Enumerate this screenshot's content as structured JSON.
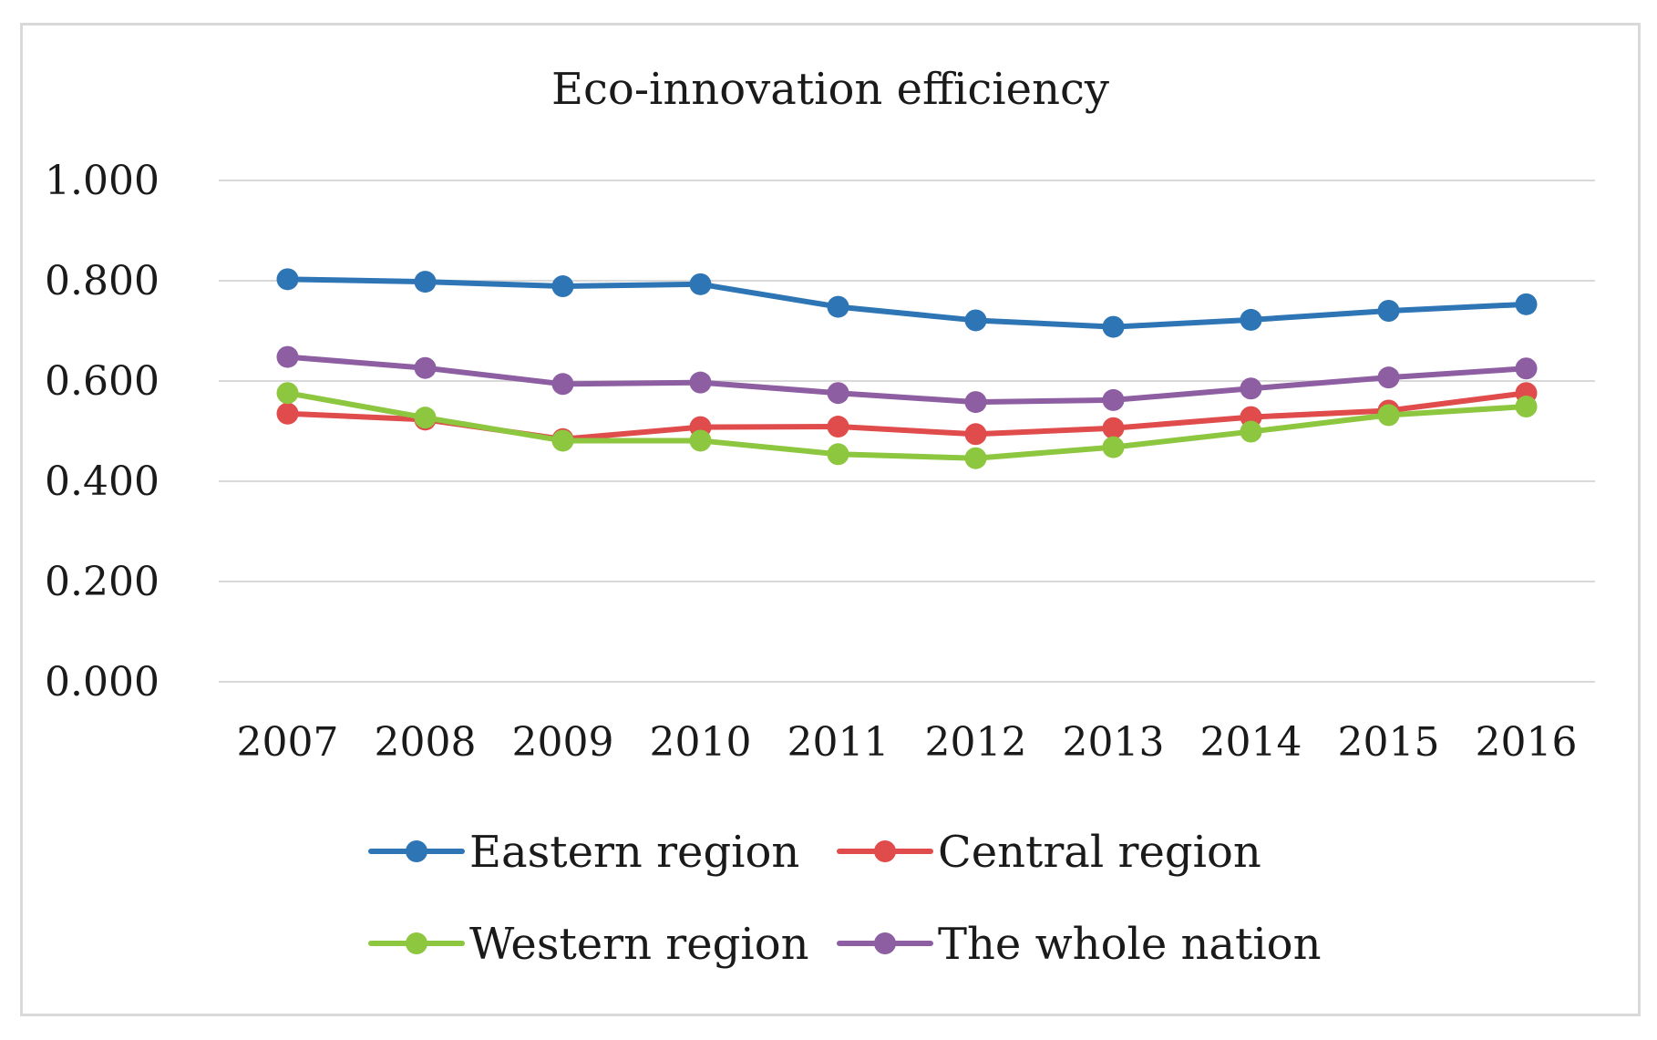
{
  "chart_data": {
    "type": "line",
    "title": "Eco-innovation efficiency",
    "xlabel": "",
    "ylabel": "",
    "categories": [
      "2007",
      "2008",
      "2009",
      "2010",
      "2011",
      "2012",
      "2013",
      "2014",
      "2015",
      "2016"
    ],
    "ylim": [
      0,
      1
    ],
    "yticks": [
      "0.000",
      "0.200",
      "0.400",
      "0.600",
      "0.800",
      "1.000"
    ],
    "ytick_values": [
      0,
      0.2,
      0.4,
      0.6,
      0.8,
      1.0
    ],
    "grid": true,
    "legend_position": "bottom",
    "series": [
      {
        "name": "Eastern region",
        "color": "#2e75b6",
        "values": [
          0.803,
          0.798,
          0.789,
          0.793,
          0.748,
          0.721,
          0.708,
          0.722,
          0.74,
          0.753
        ]
      },
      {
        "name": "Central region",
        "color": "#e04b4b",
        "values": [
          0.535,
          0.523,
          0.484,
          0.508,
          0.509,
          0.494,
          0.506,
          0.528,
          0.541,
          0.576
        ]
      },
      {
        "name": "Western region",
        "color": "#8dc63f",
        "values": [
          0.576,
          0.527,
          0.481,
          0.481,
          0.454,
          0.446,
          0.468,
          0.499,
          0.532,
          0.549
        ]
      },
      {
        "name": "The whole nation",
        "color": "#8e5ea2",
        "values": [
          0.648,
          0.626,
          0.594,
          0.597,
          0.576,
          0.558,
          0.562,
          0.585,
          0.607,
          0.625
        ]
      }
    ]
  }
}
